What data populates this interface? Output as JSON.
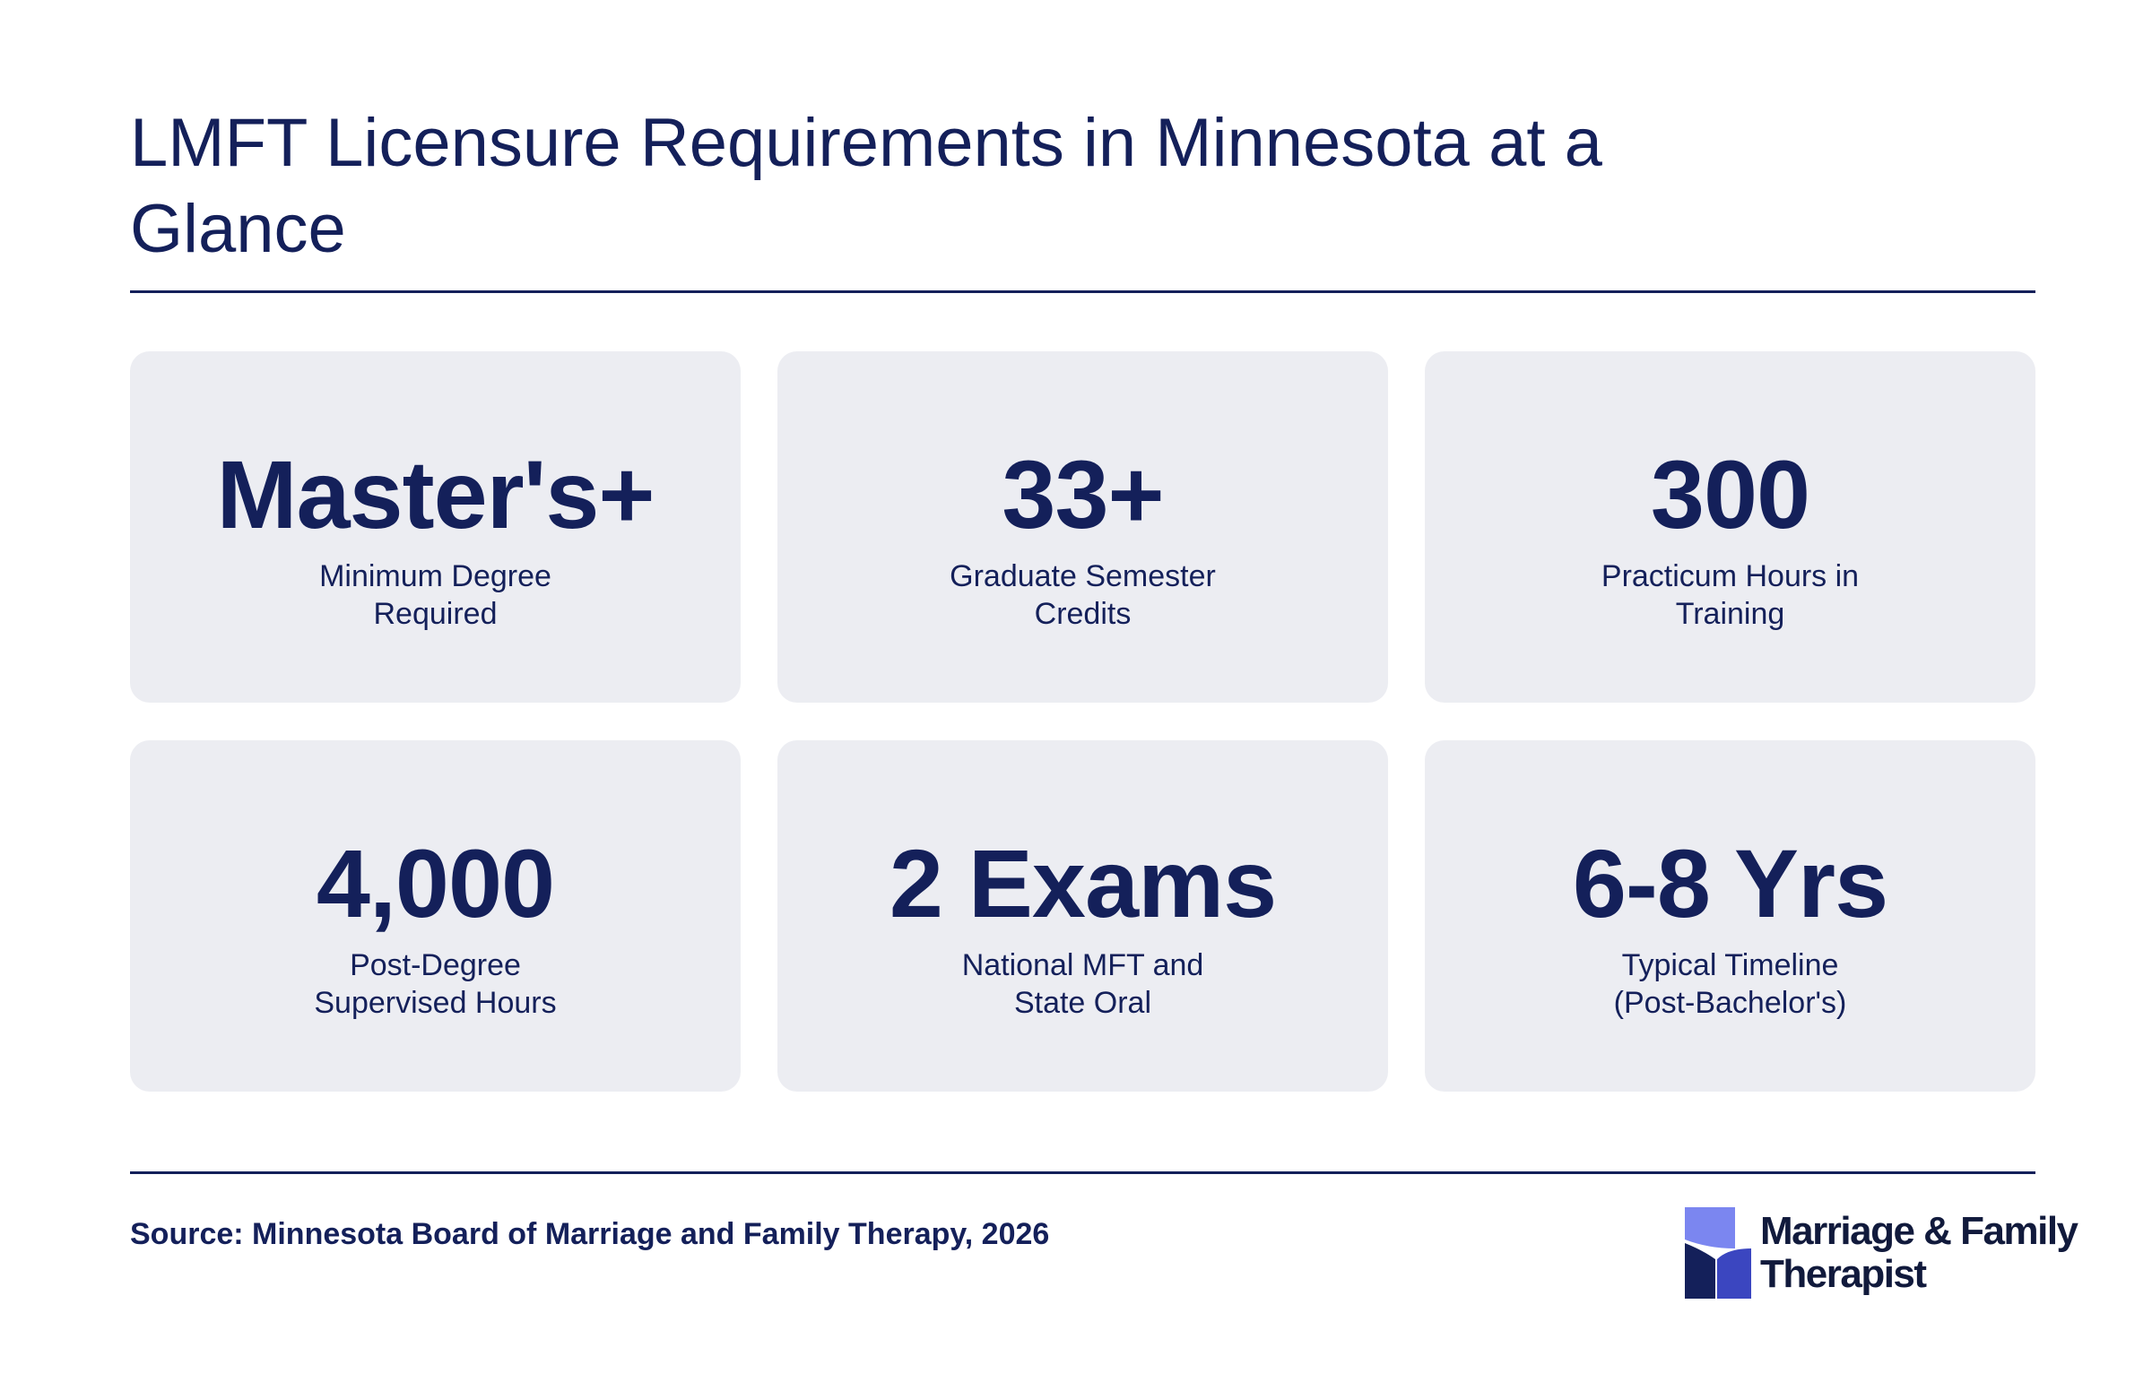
{
  "header": {
    "title": "LMFT Licensure Requirements in Minnesota at a Glance"
  },
  "stats": [
    {
      "value": "Master's+",
      "label": "Minimum Degree Required"
    },
    {
      "value": "33+",
      "label": "Graduate Semester Credits"
    },
    {
      "value": "300",
      "label": "Practicum Hours in Training"
    },
    {
      "value": "4,000",
      "label": "Post-Degree Supervised Hours"
    },
    {
      "value": "2 Exams",
      "label": "National MFT and State Oral"
    },
    {
      "value": "6-8 Yrs",
      "label": "Typical Timeline (Post-Bachelor's)"
    }
  ],
  "footer": {
    "source": "Source: Minnesota Board of Marriage and Family Therapy, 2026",
    "logo_line1": "Marriage & Family",
    "logo_line2": "Therapist"
  },
  "colors": {
    "text": "#14205a",
    "card_bg": "#ecedf2",
    "logo_light": "#7b86f0",
    "logo_mid": "#3b46c0",
    "logo_dark": "#14205a"
  }
}
